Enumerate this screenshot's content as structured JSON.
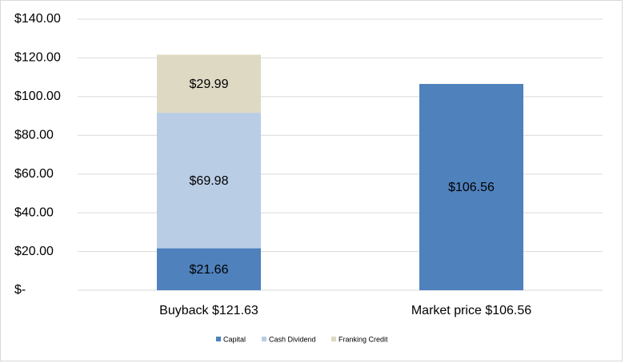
{
  "chart_data": {
    "type": "stacked-bar",
    "categories": [
      "Buyback $121.63",
      "Market price $106.56"
    ],
    "series": [
      {
        "name": "Capital",
        "color": "#4f81bd",
        "values": [
          21.66,
          106.56
        ],
        "value_labels": [
          "$21.66",
          "$106.56"
        ]
      },
      {
        "name": "Cash Dividend",
        "color": "#b9cde5",
        "values": [
          69.98,
          null
        ],
        "value_labels": [
          "$69.98",
          null
        ]
      },
      {
        "name": "Franking Credit",
        "color": "#ddd9c3",
        "values": [
          29.99,
          null
        ],
        "value_labels": [
          "$29.99",
          null
        ]
      }
    ],
    "ylim": [
      0,
      140
    ],
    "yticks": [
      {
        "value": 0,
        "label": "$-"
      },
      {
        "value": 20,
        "label": "$20.00"
      },
      {
        "value": 40,
        "label": "$40.00"
      },
      {
        "value": 60,
        "label": "$60.00"
      },
      {
        "value": 80,
        "label": "$80.00"
      },
      {
        "value": 100,
        "label": "$100.00"
      },
      {
        "value": 120,
        "label": "$120.00"
      },
      {
        "value": 140,
        "label": "$140.00"
      }
    ],
    "grid": true,
    "legend": "bottom"
  }
}
